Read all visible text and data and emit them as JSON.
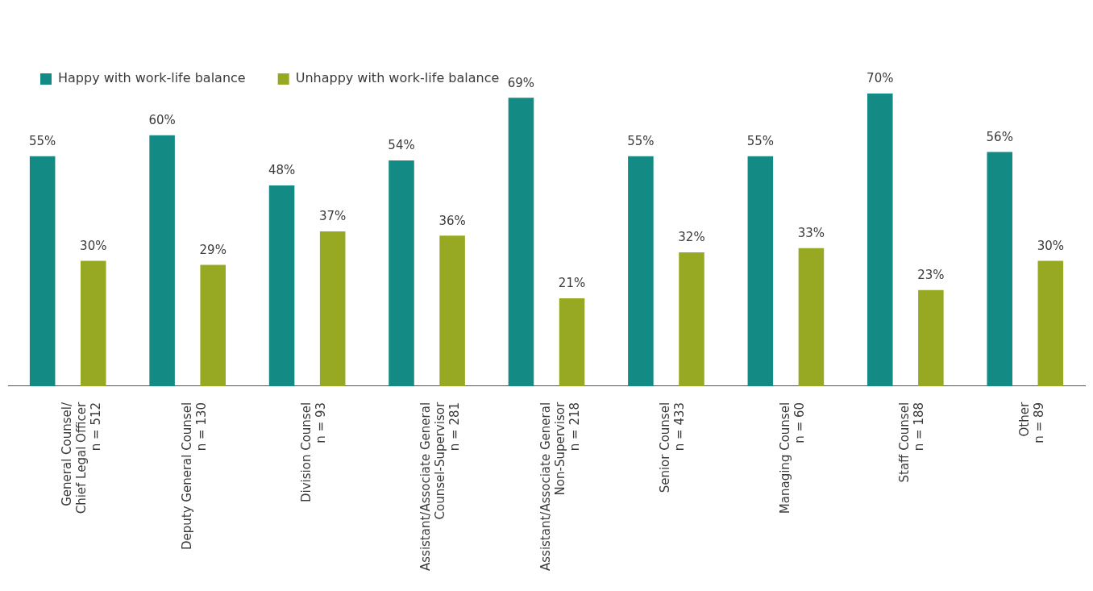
{
  "chart_data": {
    "type": "bar",
    "categories": [
      "General Counsel/\nChief Legal Officer\nn = 512",
      "Deputy General Counsel\nn = 130",
      "Division Counsel\nn = 93",
      "Assistant/Associate General\nCounsel-Supervisor\nn = 281",
      "Assistant/Associate General\nNon-Supervisor\nn = 218",
      "Senior Counsel\nn = 433",
      "Managing Counsel\nn = 60",
      "Staff Counsel\nn = 188",
      "Other\nn = 89"
    ],
    "series": [
      {
        "name": "Happy with work-life balance",
        "color": "#138a84",
        "values": [
          55,
          60,
          48,
          54,
          69,
          55,
          55,
          70,
          56
        ],
        "value_labels": [
          "55%",
          "60%",
          "48%",
          "54%",
          "69%",
          "55%",
          "55%",
          "70%",
          "56%"
        ]
      },
      {
        "name": "Unhappy with work-life balance",
        "color": "#97a823",
        "values": [
          30,
          29,
          37,
          36,
          21,
          32,
          33,
          23,
          30
        ],
        "value_labels": [
          "30%",
          "29%",
          "37%",
          "36%",
          "21%",
          "32%",
          "33%",
          "23%",
          "30%"
        ]
      }
    ],
    "grid": false,
    "legend": "top left",
    "tick_labels": "x"
  }
}
